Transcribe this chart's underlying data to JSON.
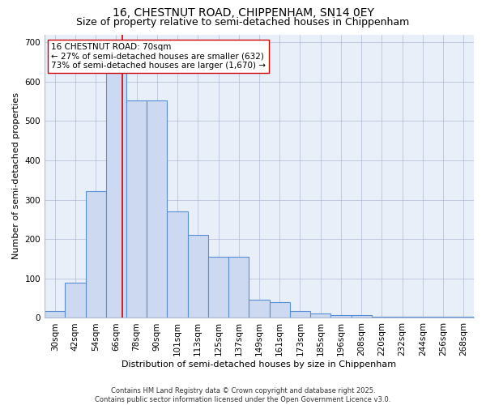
{
  "title_line1": "16, CHESTNUT ROAD, CHIPPENHAM, SN14 0EY",
  "title_line2": "Size of property relative to semi-detached houses in Chippenham",
  "xlabel": "Distribution of semi-detached houses by size in Chippenham",
  "ylabel": "Number of semi-detached properties",
  "categories": [
    "30sqm",
    "42sqm",
    "54sqm",
    "66sqm",
    "78sqm",
    "90sqm",
    "101sqm",
    "113sqm",
    "125sqm",
    "137sqm",
    "149sqm",
    "161sqm",
    "173sqm",
    "185sqm",
    "196sqm",
    "208sqm",
    "220sqm",
    "232sqm",
    "244sqm",
    "256sqm",
    "268sqm"
  ],
  "values": [
    18,
    90,
    322,
    632,
    553,
    553,
    270,
    210,
    155,
    155,
    46,
    40,
    17,
    12,
    8,
    8,
    3,
    3,
    3,
    3,
    3
  ],
  "bar_color": "#ccd9f0",
  "bar_edge_color": "#5b8fd5",
  "background_color": "#e8eff8",
  "red_line_x": 3.3,
  "red_line_color": "#cc0000",
  "annotation_text": "16 CHESTNUT ROAD: 70sqm\n← 27% of semi-detached houses are smaller (632)\n73% of semi-detached houses are larger (1,670) →",
  "ylim": [
    0,
    720
  ],
  "yticks": [
    0,
    100,
    200,
    300,
    400,
    500,
    600,
    700
  ],
  "footer_line1": "Contains HM Land Registry data © Crown copyright and database right 2025.",
  "footer_line2": "Contains public sector information licensed under the Open Government Licence v3.0.",
  "title_fontsize": 10,
  "subtitle_fontsize": 9,
  "axis_label_fontsize": 8,
  "tick_fontsize": 7.5,
  "annotation_fontsize": 7.5,
  "footer_fontsize": 6
}
